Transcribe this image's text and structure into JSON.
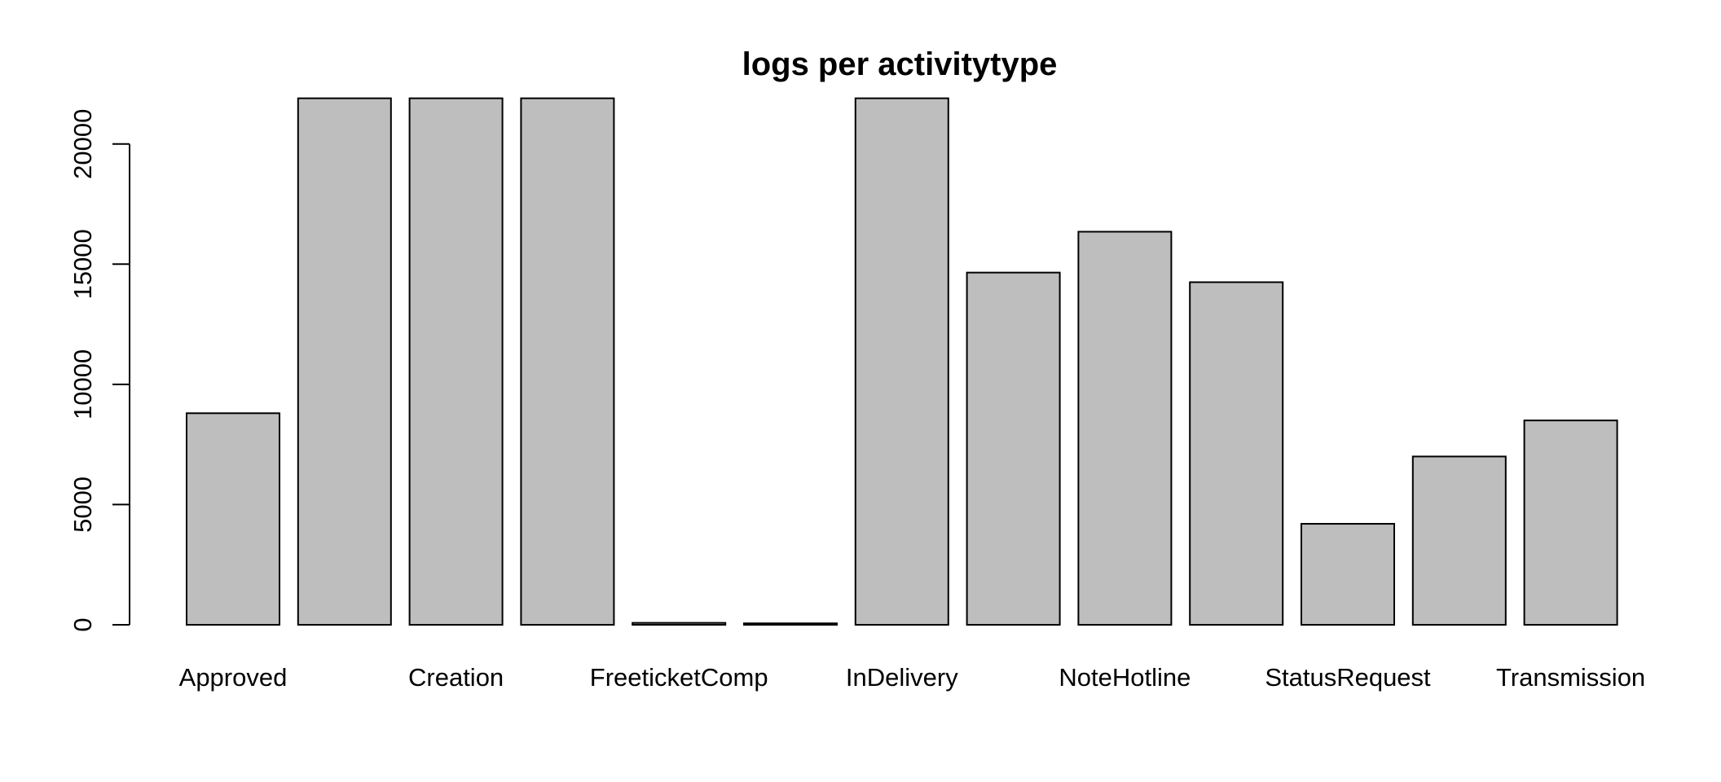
{
  "chart_data": {
    "type": "bar",
    "title": "logs per activitytype",
    "xlabel": "",
    "ylabel": "",
    "categories": [
      "Approved",
      "",
      "Creation",
      "",
      "FreeticketComp",
      "",
      "InDelivery",
      "",
      "NoteHotline",
      "",
      "StatusRequest",
      "",
      "Transmission"
    ],
    "values": [
      8800,
      21900,
      21900,
      21900,
      80,
      60,
      21900,
      14650,
      16350,
      14250,
      4200,
      7000,
      8500
    ],
    "yticks": [
      0,
      5000,
      10000,
      15000,
      20000
    ],
    "ylim": [
      0,
      22600
    ],
    "grid": false,
    "bar_color": "#bebebe",
    "bar_border_color": "#000000"
  }
}
